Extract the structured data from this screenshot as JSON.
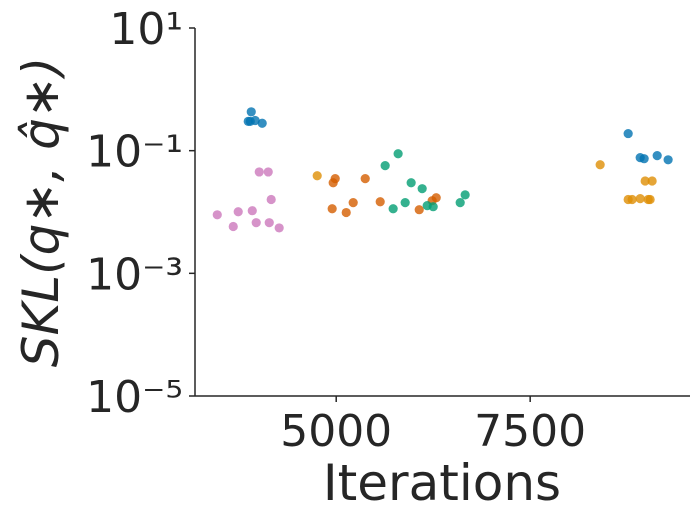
{
  "chart_data": {
    "type": "scatter",
    "xlabel": "Iterations",
    "ylabel": "SKL(q∗, q̂∗)",
    "xlim": [
      3180,
      9560
    ],
    "ylim": [
      1e-05,
      10
    ],
    "ylog": true,
    "xticks": [
      5000,
      7500
    ],
    "yticks": [
      {
        "value": 10,
        "label": "10¹"
      },
      {
        "value": 0.1,
        "label": "10⁻¹"
      },
      {
        "value": 0.001,
        "label": "10⁻³"
      },
      {
        "value": 1e-05,
        "label": "10⁻⁵"
      }
    ],
    "series": [
      {
        "color": "#0173b2",
        "x": [
          3905,
          3892,
          3956,
          4046,
          3866,
          8763,
          8918,
          8969,
          9137,
          9278
        ],
        "y": [
          0.43,
          0.3,
          0.31,
          0.28,
          0.3,
          0.19,
          0.077,
          0.074,
          0.083,
          0.071
        ]
      },
      {
        "color": "#de8f05",
        "x": [
          4755,
          8402,
          8763,
          8814,
          8918,
          8982,
          9072,
          9021,
          9046
        ],
        "y": [
          0.039,
          0.059,
          0.016,
          0.016,
          0.0165,
          0.032,
          0.032,
          0.016,
          0.016
        ]
      },
      {
        "color": "#d55e00",
        "x": [
          4961,
          4987,
          4948,
          5129,
          5219,
          5374,
          5567,
          6070,
          6237,
          6289
        ],
        "y": [
          0.03,
          0.035,
          0.0113,
          0.0098,
          0.0142,
          0.035,
          0.0147,
          0.0109,
          0.0153,
          0.0171
        ]
      },
      {
        "color": "#029e73",
        "x": [
          5631,
          5798,
          5966,
          6108,
          5889,
          5734,
          6173,
          6250,
          6598,
          6662
        ],
        "y": [
          0.057,
          0.089,
          0.03,
          0.024,
          0.0142,
          0.0113,
          0.0127,
          0.0122,
          0.0142,
          0.019
        ]
      },
      {
        "color": "#cc78bc",
        "x": [
          4008,
          4124,
          4162,
          3467,
          3737,
          3918,
          3673,
          3969,
          4137,
          4265
        ],
        "y": [
          0.045,
          0.045,
          0.016,
          0.009,
          0.0101,
          0.0105,
          0.0058,
          0.0067,
          0.0067,
          0.0055
        ]
      }
    ]
  }
}
